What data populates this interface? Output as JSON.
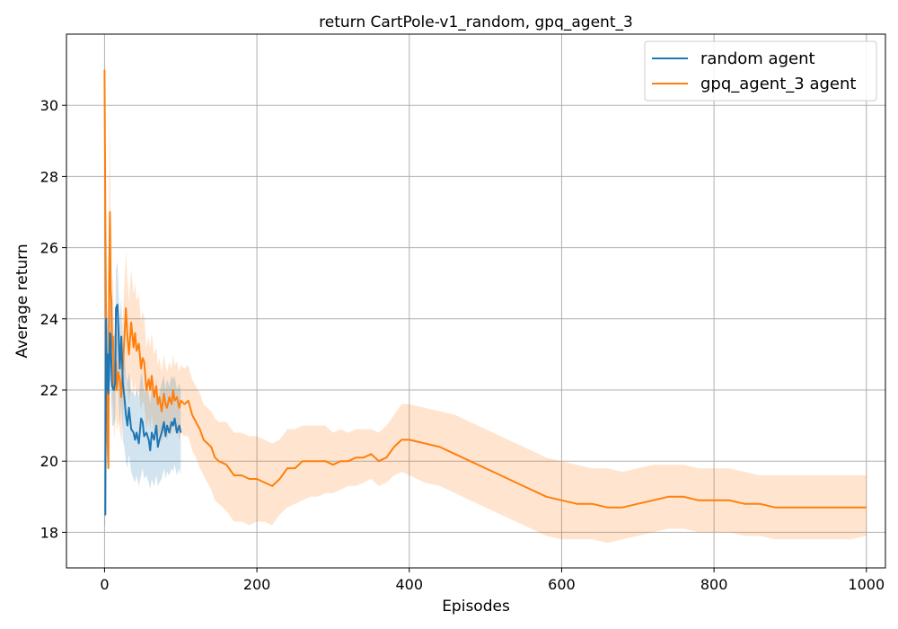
{
  "chart_data": {
    "type": "line",
    "title": "return CartPole-v1_random, gpq_agent_3",
    "xlabel": "Episodes",
    "ylabel": "Average return",
    "xlim": [
      -50,
      1025
    ],
    "ylim": [
      17.0,
      32.0
    ],
    "xticks": [
      0,
      200,
      400,
      600,
      800,
      1000
    ],
    "yticks": [
      18,
      20,
      22,
      24,
      26,
      28,
      30
    ],
    "grid": true,
    "legend_position": "top-right",
    "series": [
      {
        "name": "random agent",
        "color": "#1f77b4",
        "band_color": "#1f77b4",
        "band_opacity": 0.2,
        "x": [
          0,
          1,
          2,
          3,
          4,
          5,
          6,
          7,
          8,
          9,
          10,
          12,
          14,
          15,
          17,
          18,
          20,
          22,
          24,
          26,
          28,
          30,
          32,
          35,
          38,
          40,
          42,
          45,
          48,
          50,
          52,
          55,
          58,
          60,
          62,
          65,
          68,
          70,
          72,
          75,
          78,
          80,
          82,
          85,
          88,
          90,
          92,
          95,
          98,
          100
        ],
        "y": [
          18.5,
          18.5,
          24.0,
          22.0,
          23.0,
          21.9,
          22.3,
          23.6,
          23.5,
          22.7,
          22.1,
          22.0,
          22.2,
          24.3,
          24.4,
          23.8,
          22.6,
          23.5,
          22.2,
          21.8,
          21.3,
          21.0,
          21.5,
          20.9,
          20.8,
          20.6,
          20.8,
          20.5,
          21.2,
          21.1,
          20.7,
          20.8,
          20.6,
          20.3,
          20.8,
          20.6,
          21.0,
          20.4,
          20.6,
          20.8,
          21.1,
          20.7,
          21.0,
          20.8,
          21.1,
          21.0,
          21.2,
          20.8,
          21.0,
          20.8
        ],
        "lower": [
          18.2,
          18.2,
          22.0,
          20.5,
          21.5,
          20.8,
          21.0,
          22.3,
          22.2,
          21.5,
          21.0,
          21.0,
          21.2,
          22.3,
          22.5,
          22.0,
          21.0,
          21.7,
          20.6,
          20.4,
          20.0,
          19.8,
          20.2,
          19.7,
          19.5,
          19.4,
          19.6,
          19.3,
          19.6,
          19.8,
          19.5,
          19.6,
          19.4,
          19.2,
          19.5,
          19.3,
          19.6,
          19.3,
          19.4,
          19.5,
          19.8,
          19.5,
          19.7,
          19.6,
          19.8,
          19.7,
          19.9,
          19.6,
          19.8,
          19.6
        ],
        "upper": [
          18.8,
          18.8,
          25.5,
          23.5,
          24.4,
          23.4,
          24.0,
          25.0,
          24.8,
          24.0,
          23.5,
          23.5,
          23.6,
          25.4,
          25.6,
          25.0,
          24.0,
          24.6,
          23.3,
          23.0,
          22.5,
          22.2,
          22.5,
          22.0,
          21.9,
          21.8,
          22.0,
          21.8,
          22.5,
          22.3,
          21.9,
          22.1,
          21.9,
          21.6,
          22.1,
          21.9,
          22.3,
          21.7,
          21.9,
          22.2,
          22.4,
          22.0,
          22.3,
          22.1,
          22.4,
          22.3,
          22.4,
          22.0,
          22.2,
          22.0
        ]
      },
      {
        "name": "gpq_agent_3 agent",
        "color": "#ff7f0e",
        "band_color": "#ff7f0e",
        "band_opacity": 0.2,
        "x": [
          0,
          1,
          2,
          3,
          4,
          5,
          6,
          7,
          8,
          9,
          10,
          11,
          12,
          13,
          14,
          15,
          16,
          18,
          20,
          22,
          25,
          28,
          30,
          32,
          35,
          38,
          40,
          42,
          45,
          48,
          50,
          52,
          55,
          58,
          60,
          62,
          65,
          68,
          70,
          72,
          75,
          78,
          80,
          82,
          85,
          88,
          90,
          92,
          95,
          98,
          100,
          105,
          110,
          115,
          120,
          125,
          130,
          135,
          140,
          145,
          150,
          160,
          170,
          180,
          190,
          200,
          210,
          220,
          230,
          240,
          250,
          260,
          270,
          280,
          290,
          300,
          310,
          320,
          330,
          340,
          350,
          360,
          370,
          380,
          390,
          400,
          420,
          440,
          460,
          480,
          500,
          520,
          540,
          560,
          580,
          600,
          620,
          640,
          660,
          680,
          700,
          720,
          740,
          760,
          780,
          800,
          820,
          840,
          860,
          880,
          900,
          920,
          940,
          960,
          980,
          1000
        ],
        "y": [
          31.0,
          27.0,
          24.0,
          22.5,
          20.5,
          19.8,
          25.0,
          27.0,
          24.8,
          24.5,
          23.2,
          23.5,
          22.5,
          22.0,
          22.3,
          22.8,
          22.0,
          22.5,
          22.3,
          21.8,
          23.0,
          24.3,
          23.5,
          23.0,
          23.9,
          23.2,
          23.6,
          23.1,
          23.3,
          22.6,
          22.9,
          22.8,
          22.0,
          22.3,
          22.0,
          22.4,
          21.8,
          22.1,
          21.6,
          21.8,
          21.4,
          21.9,
          21.6,
          21.5,
          21.8,
          21.6,
          22.0,
          21.7,
          21.8,
          21.5,
          21.7,
          21.6,
          21.7,
          21.3,
          21.1,
          20.9,
          20.6,
          20.5,
          20.4,
          20.1,
          20.0,
          19.9,
          19.6,
          19.6,
          19.5,
          19.5,
          19.4,
          19.3,
          19.5,
          19.8,
          19.8,
          20.0,
          20.0,
          20.0,
          20.0,
          19.9,
          20.0,
          20.0,
          20.1,
          20.1,
          20.2,
          20.0,
          20.1,
          20.4,
          20.6,
          20.6,
          20.5,
          20.4,
          20.2,
          20.0,
          19.8,
          19.6,
          19.4,
          19.2,
          19.0,
          18.9,
          18.8,
          18.8,
          18.7,
          18.7,
          18.8,
          18.9,
          19.0,
          19.0,
          18.9,
          18.9,
          18.9,
          18.8,
          18.8,
          18.7,
          18.7,
          18.7,
          18.7,
          18.7,
          18.7,
          18.7
        ],
        "lower": [
          30.8,
          26.0,
          22.5,
          20.5,
          19.8,
          19.8,
          22.5,
          24.2,
          22.6,
          22.4,
          21.5,
          21.8,
          21.0,
          20.6,
          21.0,
          21.4,
          20.8,
          21.1,
          20.9,
          20.5,
          21.5,
          22.6,
          22.0,
          21.6,
          22.4,
          21.8,
          22.2,
          21.8,
          22.0,
          21.4,
          21.7,
          21.6,
          20.9,
          21.2,
          20.9,
          21.3,
          20.8,
          21.1,
          20.6,
          20.8,
          20.5,
          20.9,
          20.7,
          20.6,
          20.9,
          20.7,
          21.1,
          20.8,
          20.9,
          20.6,
          20.8,
          20.7,
          20.7,
          20.3,
          20.1,
          19.8,
          19.6,
          19.4,
          19.2,
          18.9,
          18.8,
          18.6,
          18.3,
          18.3,
          18.2,
          18.3,
          18.3,
          18.2,
          18.5,
          18.7,
          18.8,
          18.9,
          19.0,
          19.0,
          19.1,
          19.1,
          19.2,
          19.3,
          19.3,
          19.4,
          19.5,
          19.3,
          19.4,
          19.6,
          19.7,
          19.6,
          19.4,
          19.3,
          19.1,
          18.9,
          18.7,
          18.5,
          18.3,
          18.1,
          17.9,
          17.8,
          17.8,
          17.8,
          17.7,
          17.8,
          17.9,
          18.0,
          18.1,
          18.1,
          18.0,
          18.0,
          18.0,
          17.9,
          17.9,
          17.8,
          17.8,
          17.8,
          17.8,
          17.8,
          17.8,
          17.9
        ],
        "upper": [
          31.2,
          28.0,
          25.5,
          24.5,
          22.5,
          21.5,
          27.5,
          29.5,
          27.0,
          26.6,
          25.0,
          25.2,
          24.0,
          23.5,
          23.7,
          24.3,
          23.3,
          24.0,
          23.8,
          23.2,
          24.5,
          25.9,
          25.1,
          24.5,
          25.4,
          24.7,
          25.0,
          24.5,
          24.7,
          23.9,
          24.2,
          24.1,
          23.2,
          23.5,
          23.2,
          23.6,
          23.0,
          23.2,
          22.7,
          22.9,
          22.5,
          23.0,
          22.7,
          22.5,
          22.8,
          22.6,
          23.0,
          22.7,
          22.8,
          22.5,
          22.7,
          22.6,
          22.7,
          22.3,
          22.1,
          21.9,
          21.6,
          21.5,
          21.4,
          21.2,
          21.1,
          21.1,
          20.8,
          20.8,
          20.7,
          20.7,
          20.6,
          20.5,
          20.6,
          20.9,
          20.9,
          21.0,
          21.0,
          21.0,
          21.0,
          20.8,
          20.9,
          20.8,
          20.9,
          20.9,
          20.9,
          20.8,
          21.0,
          21.3,
          21.6,
          21.6,
          21.5,
          21.4,
          21.3,
          21.1,
          20.9,
          20.7,
          20.5,
          20.3,
          20.1,
          20.0,
          19.9,
          19.8,
          19.8,
          19.7,
          19.8,
          19.9,
          19.9,
          19.9,
          19.8,
          19.8,
          19.8,
          19.7,
          19.6,
          19.6,
          19.6,
          19.6,
          19.6,
          19.6,
          19.6,
          19.6
        ]
      }
    ]
  }
}
